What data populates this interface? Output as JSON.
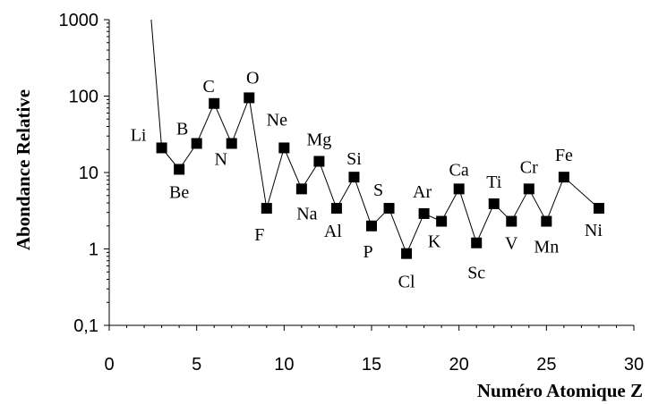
{
  "chart_data": {
    "type": "line",
    "xlabel": "Numéro Atomique Z",
    "ylabel": "Abondance Relative",
    "xlim": [
      0,
      30
    ],
    "ylim": [
      0.1,
      1000
    ],
    "yscale": "log",
    "x_ticks": [
      0,
      5,
      10,
      15,
      20,
      25,
      30
    ],
    "x_tick_labels": [
      "0",
      "5",
      "10",
      "15",
      "20",
      "25",
      "30"
    ],
    "y_ticks": [
      0.1,
      1,
      10,
      100,
      1000
    ],
    "y_tick_labels": [
      "0,1",
      "1",
      "10",
      "100",
      "1000"
    ],
    "grid": false,
    "legend": "none",
    "line_color": "#000000",
    "marker": "square",
    "lead_in": [
      {
        "x": 2.4,
        "y": 1000
      }
    ],
    "points": [
      {
        "label": "Li",
        "x": 3,
        "y": 21
      },
      {
        "label": "Be",
        "x": 4,
        "y": 11
      },
      {
        "label": "B",
        "x": 5,
        "y": 24
      },
      {
        "label": "C",
        "x": 6,
        "y": 80
      },
      {
        "label": "N",
        "x": 7,
        "y": 24
      },
      {
        "label": "O",
        "x": 8,
        "y": 95
      },
      {
        "label": "F",
        "x": 9,
        "y": 3.4
      },
      {
        "label": "Ne",
        "x": 10,
        "y": 21
      },
      {
        "label": "Na",
        "x": 11,
        "y": 6.1
      },
      {
        "label": "Mg",
        "x": 12,
        "y": 14
      },
      {
        "label": "Al",
        "x": 13,
        "y": 3.4
      },
      {
        "label": "Si",
        "x": 14,
        "y": 8.7
      },
      {
        "label": "P",
        "x": 15,
        "y": 2.0
      },
      {
        "label": "S",
        "x": 16,
        "y": 3.4
      },
      {
        "label": "Cl",
        "x": 17,
        "y": 0.87
      },
      {
        "label": "Ar",
        "x": 18,
        "y": 2.9
      },
      {
        "label": "K",
        "x": 19,
        "y": 2.3
      },
      {
        "label": "Ca",
        "x": 20,
        "y": 6.1
      },
      {
        "label": "Sc",
        "x": 21,
        "y": 1.2
      },
      {
        "label": "Ti",
        "x": 22,
        "y": 3.9
      },
      {
        "label": "V",
        "x": 23,
        "y": 2.3
      },
      {
        "label": "Cr",
        "x": 24,
        "y": 6.1
      },
      {
        "label": "Mn",
        "x": 25,
        "y": 2.3
      },
      {
        "label": "Fe",
        "x": 26,
        "y": 8.7
      },
      {
        "label": "Ni",
        "x": 28,
        "y": 3.4
      }
    ]
  }
}
